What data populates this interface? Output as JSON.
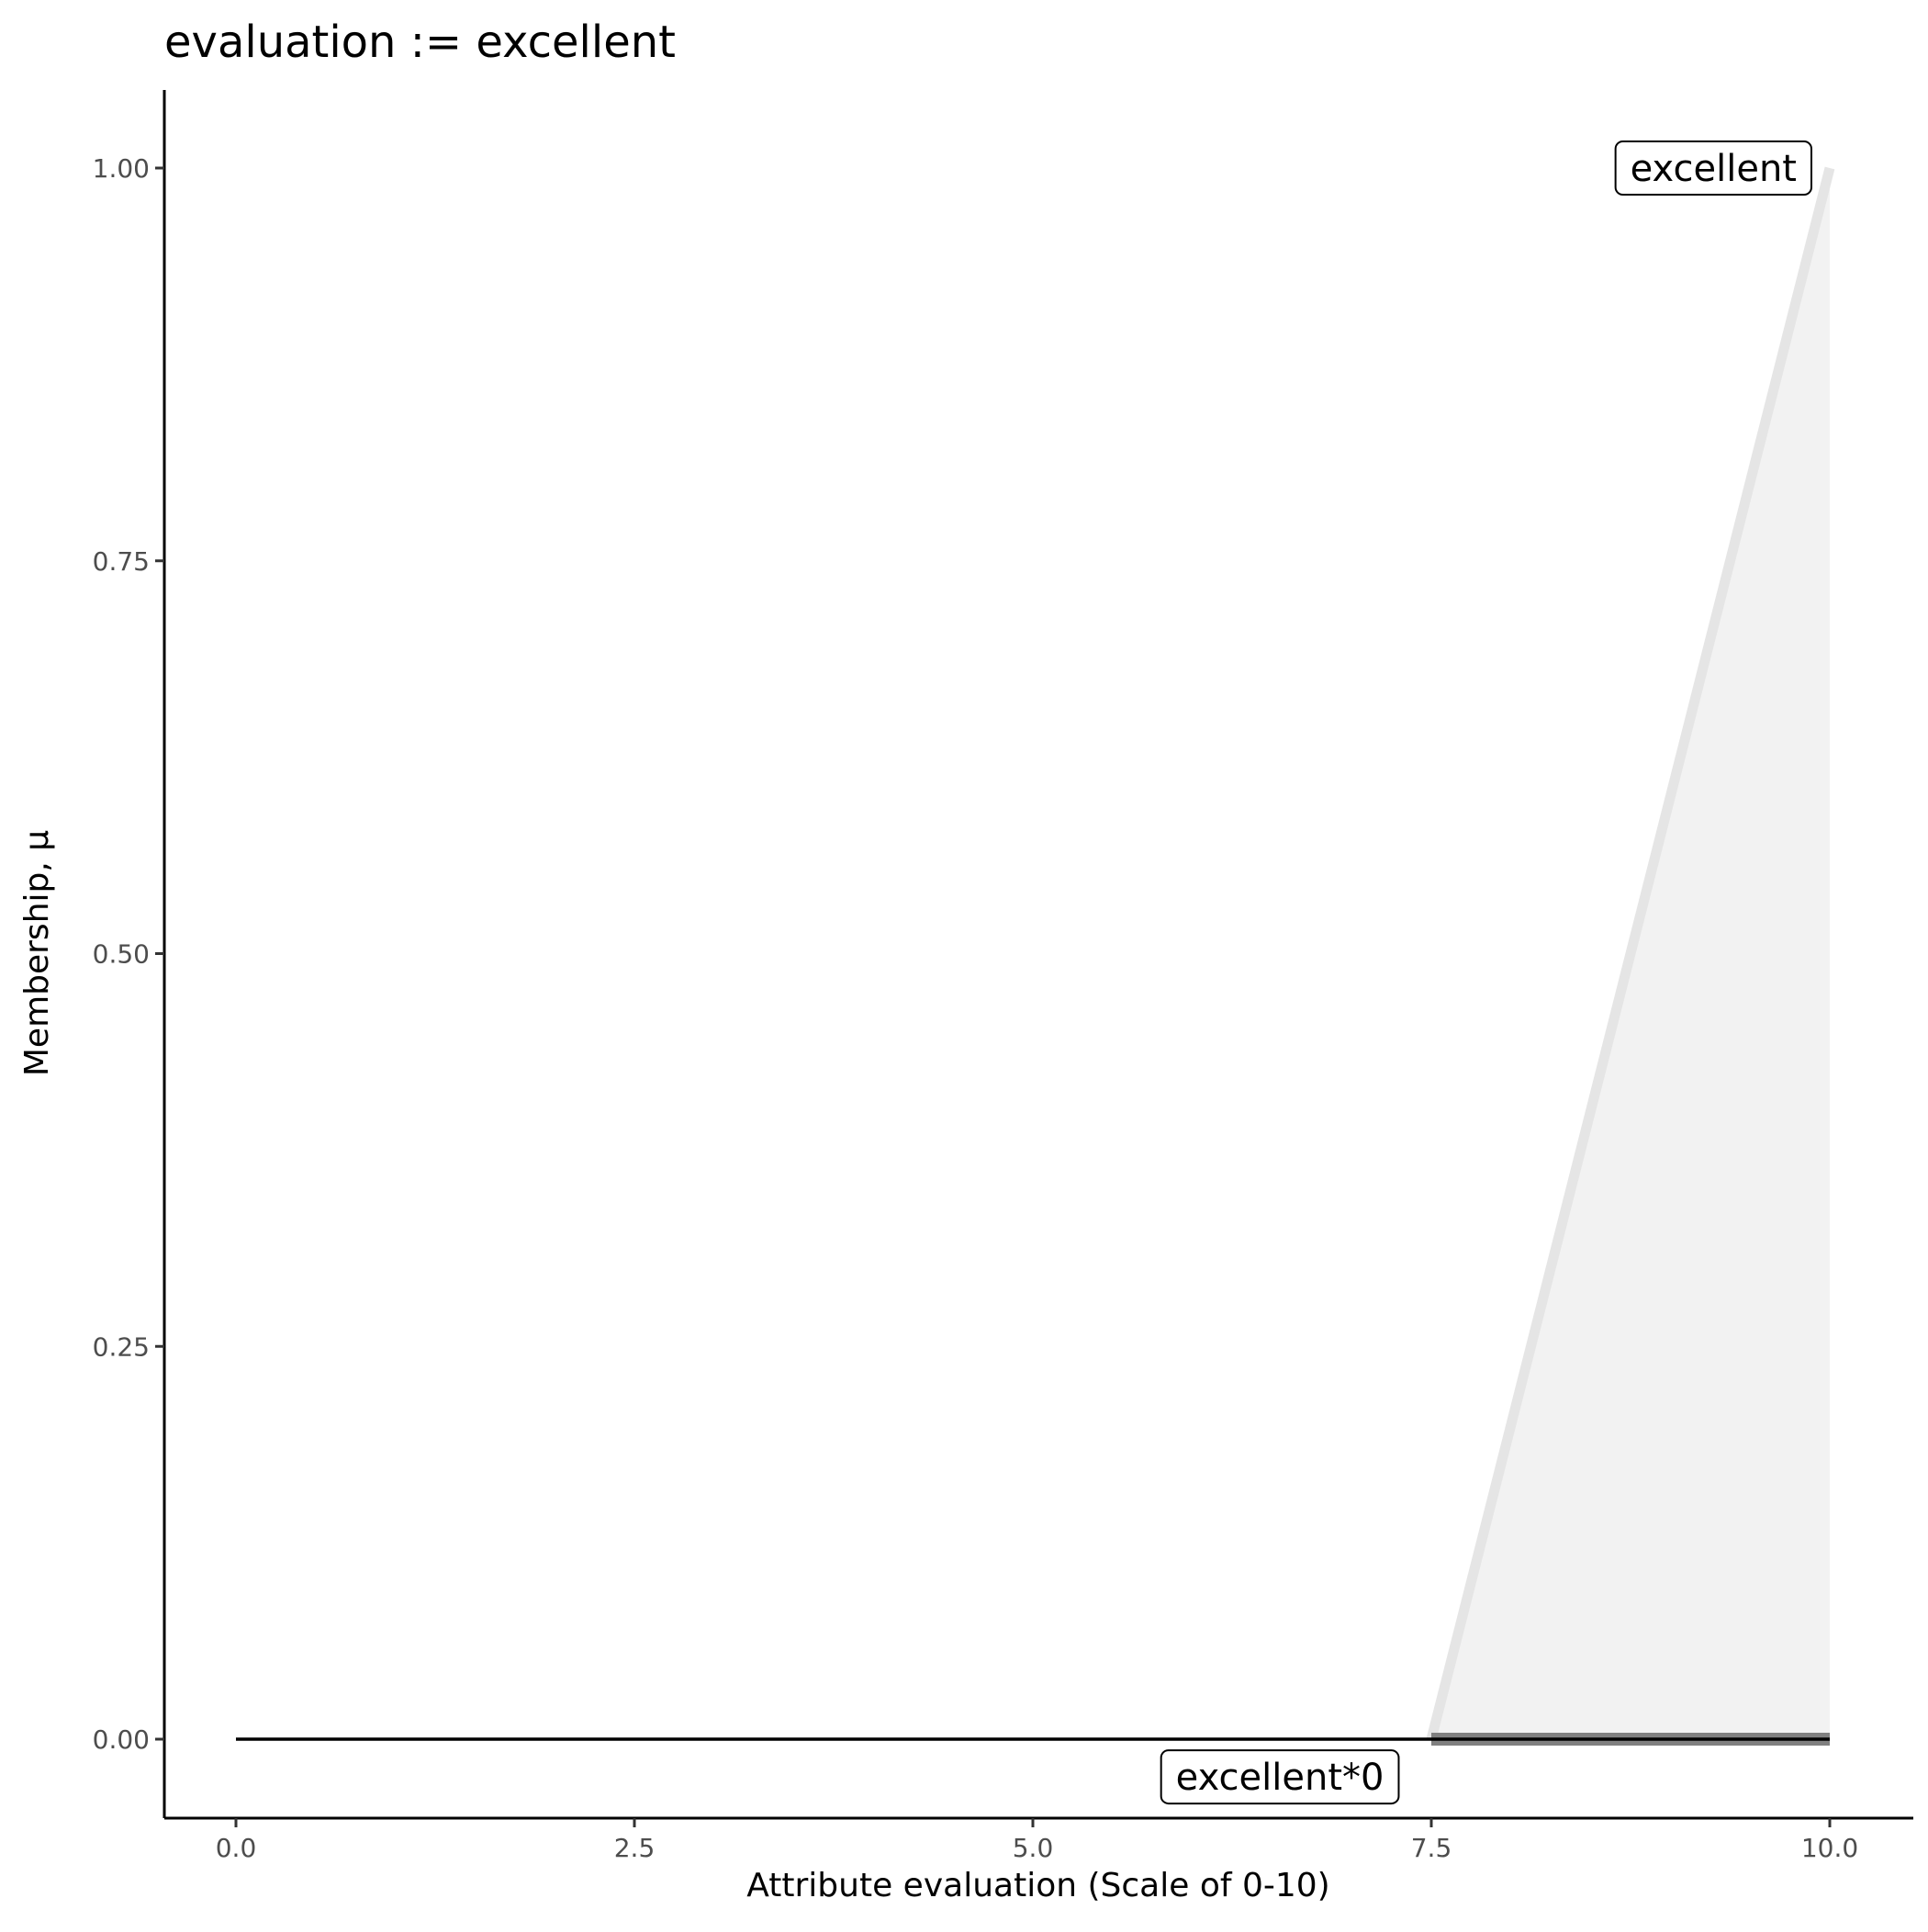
{
  "chart_data": {
    "type": "line",
    "title": "evaluation := excellent",
    "xlabel": "Attribute evaluation (Scale of 0-10)",
    "ylabel": "Membership, μ",
    "xlim": [
      -0.5,
      10.5
    ],
    "ylim": [
      -0.05,
      1.05
    ],
    "xticks": [
      0,
      2.5,
      5,
      7.5,
      10
    ],
    "xtick_labels": [
      "0.0",
      "2.5",
      "5.0",
      "7.5",
      "10.0"
    ],
    "yticks": [
      0,
      0.25,
      0.5,
      0.75,
      1
    ],
    "ytick_labels": [
      "0.00",
      "0.25",
      "0.50",
      "0.75",
      "1.00"
    ],
    "grid": false,
    "series": [
      {
        "name": "excellent",
        "x": [
          7.5,
          10
        ],
        "y": [
          0,
          1
        ],
        "color": "#e5e5e5",
        "fill": "#f2f2f2"
      },
      {
        "name": "excellent*0",
        "x": [
          7.5,
          10
        ],
        "y": [
          0,
          0
        ],
        "color": "#808080"
      },
      {
        "x": [
          0,
          10
        ],
        "y": [
          0,
          0
        ],
        "color": "#000000"
      }
    ],
    "annotations": [
      {
        "text": "excellent",
        "x": 10,
        "y": 1,
        "anchor": "end"
      },
      {
        "text": "excellent*0",
        "x": 6.55,
        "y": -0.024,
        "anchor": "middle"
      }
    ]
  }
}
